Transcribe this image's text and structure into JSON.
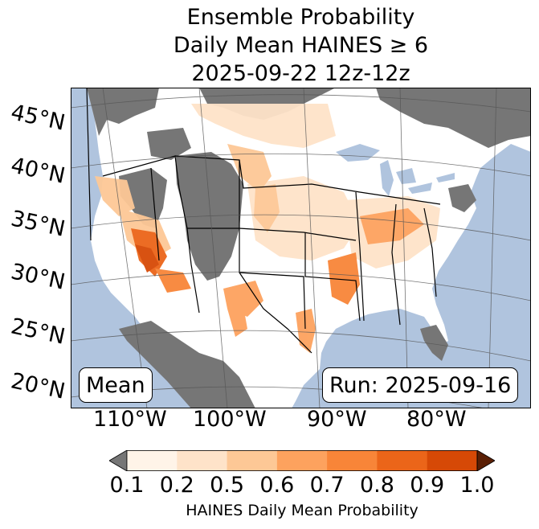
{
  "title": {
    "line1": "Ensemble Probability",
    "line2": "Daily Mean HAINES ≥ 6",
    "line3": "2025-09-22 12z-12z"
  },
  "map": {
    "region": "Contiguous United States",
    "projection": "Lambert conformal",
    "colors": {
      "ocean": "#b0c4de",
      "missing": "#767676",
      "land": "#ffffff",
      "borders": "#000000",
      "graticule": "#555555"
    },
    "lat_labels": [
      "45°N",
      "40°N",
      "35°N",
      "30°N",
      "25°N",
      "20°N"
    ],
    "lon_labels": [
      "110°W",
      "100°W",
      "90°W",
      "80°W"
    ],
    "notable_high_areas": [
      "Southern Nevada / Arizona",
      "Lower Mississippi Valley",
      "Texas Big Bend",
      "Wyoming / Colorado"
    ]
  },
  "annotations": {
    "stat": "Mean",
    "run": "Run: 2025-09-16"
  },
  "colorbar": {
    "label": "HAINES Daily Mean Probability",
    "ticks": [
      "0.1",
      "0.2",
      "0.5",
      "0.6",
      "0.7",
      "0.8",
      "0.9",
      "1.0"
    ],
    "under_color": "#767676",
    "over_color": "#5a1f05",
    "colors": [
      "#fff4e8",
      "#fee3c9",
      "#fdc896",
      "#fda25e",
      "#f88538",
      "#eb6519",
      "#d64906"
    ]
  }
}
